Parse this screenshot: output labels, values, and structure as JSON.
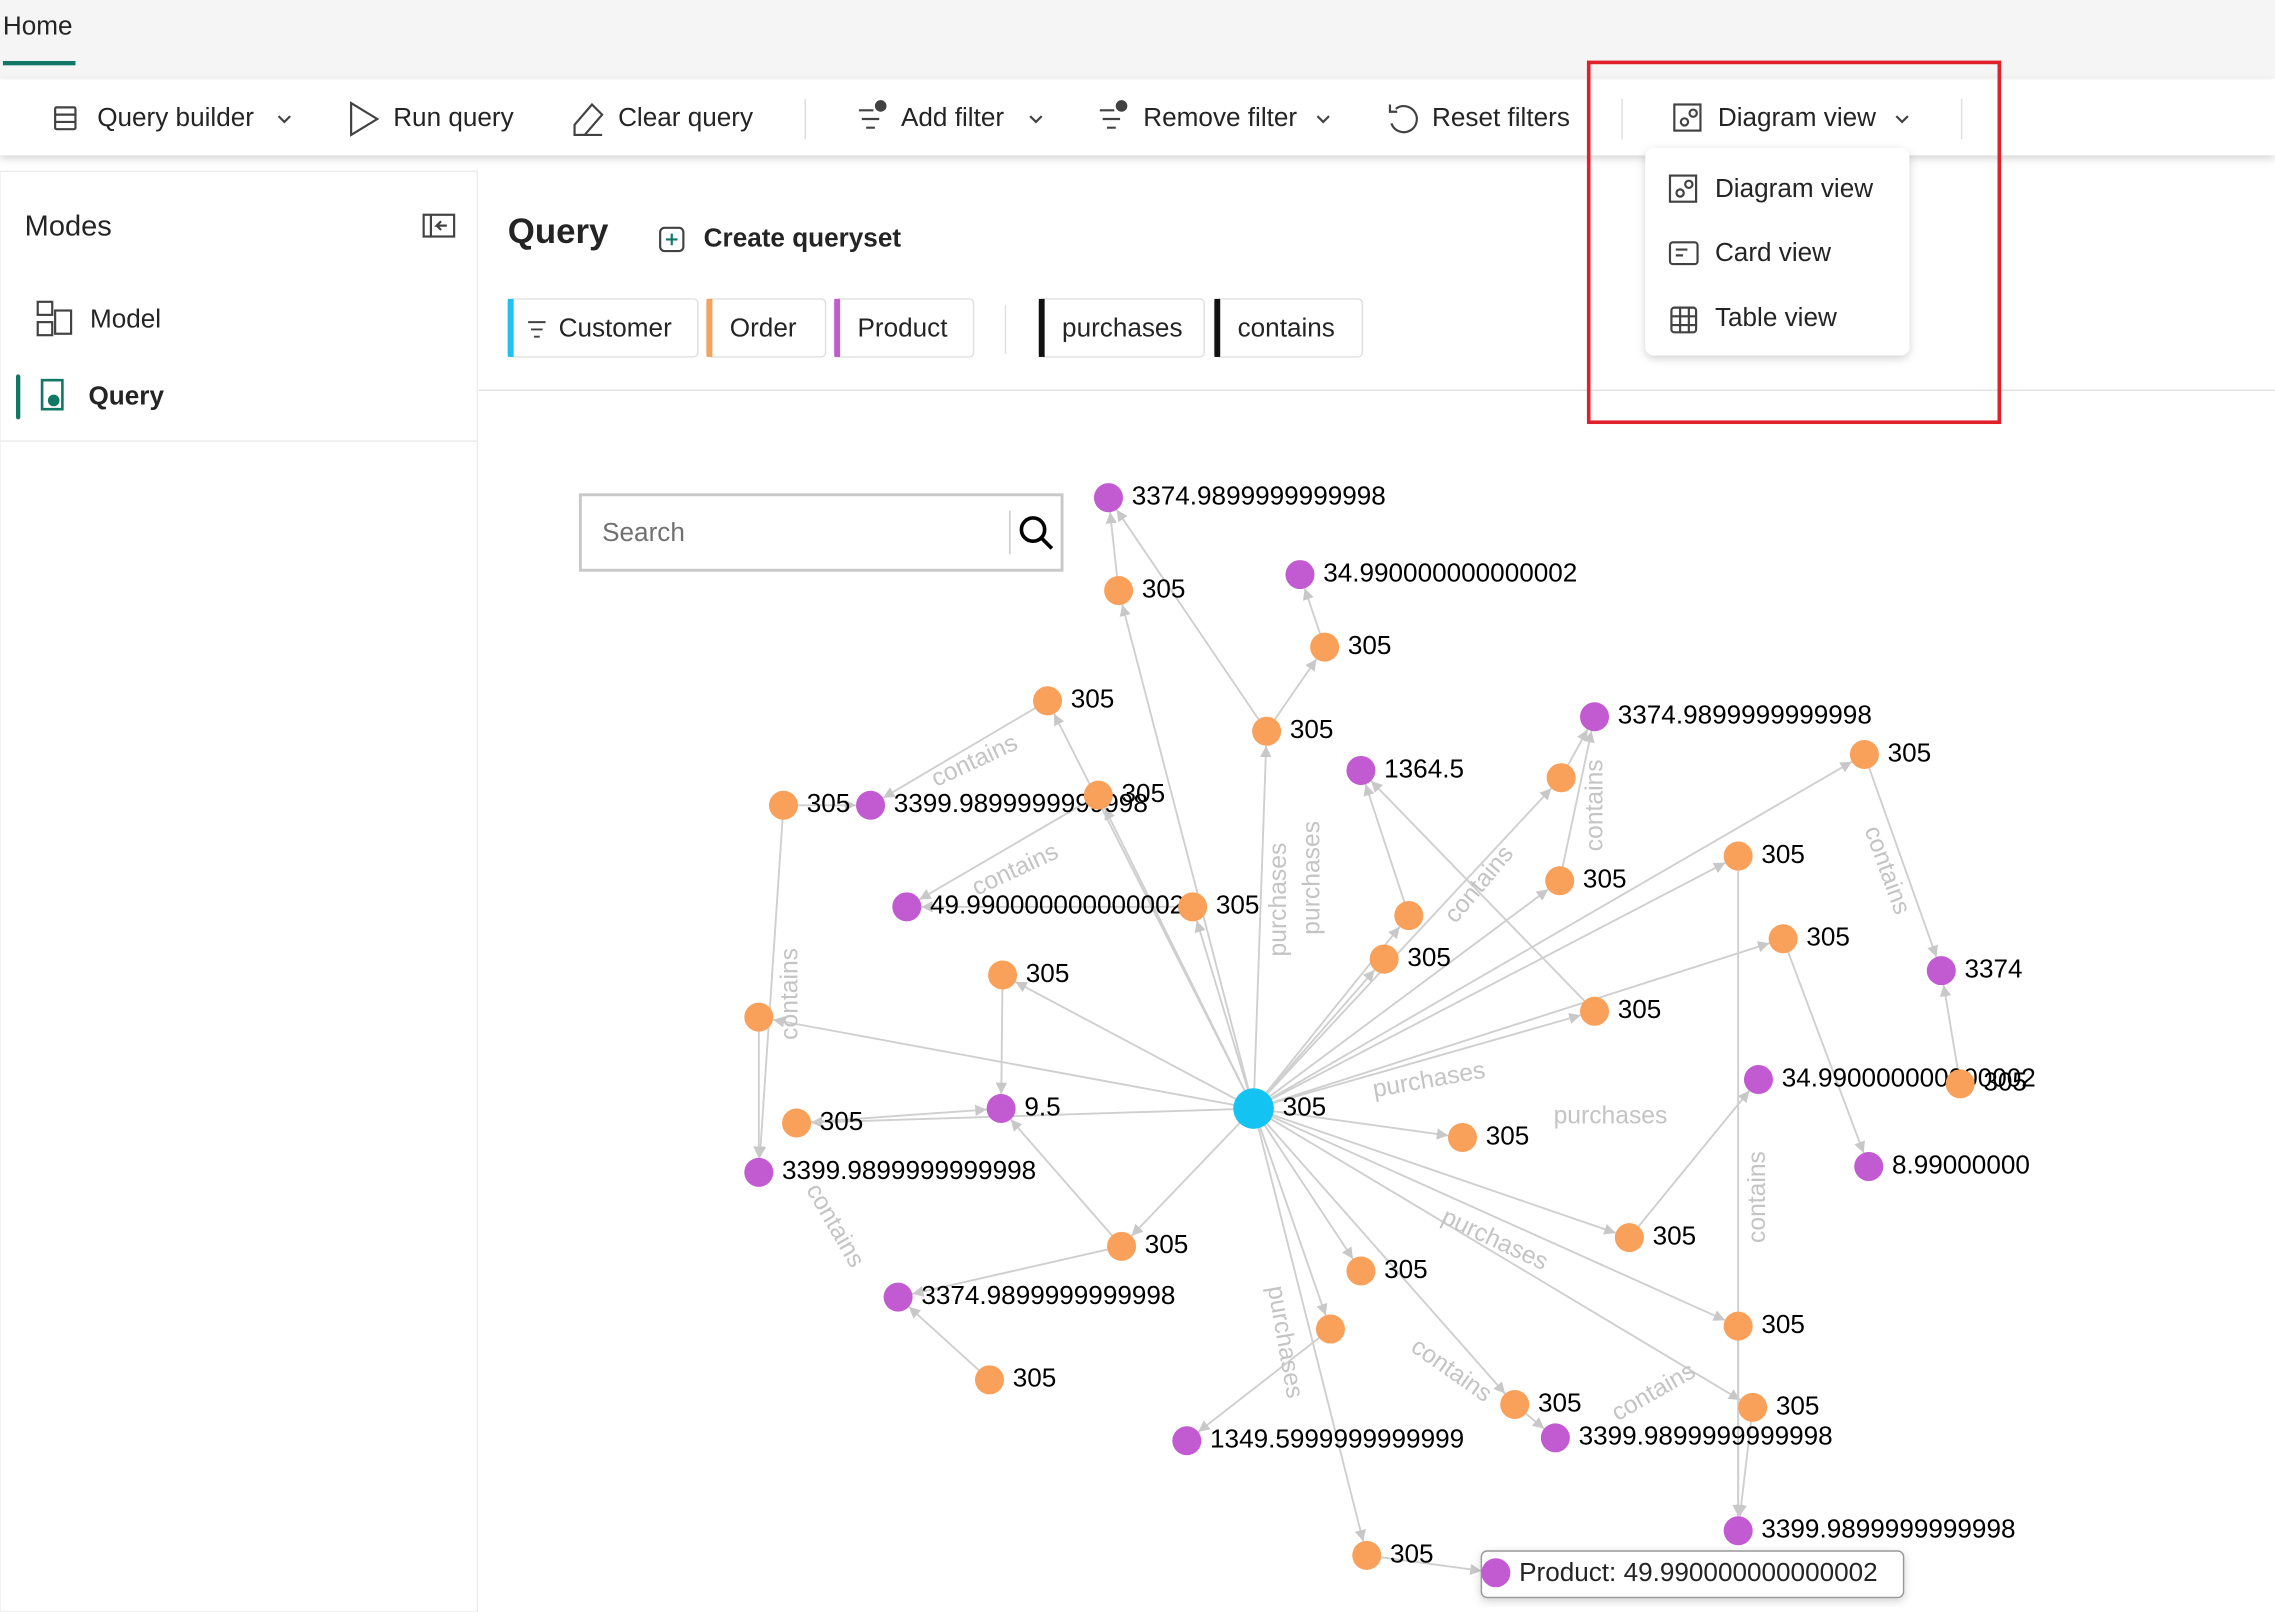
{
  "header": {
    "tab": "Home"
  },
  "toolbar": [
    "Query builder",
    "Run query",
    "Clear query",
    "Add filter",
    "Remove filter",
    "Reset filters",
    "Diagram view"
  ],
  "view_menu": [
    "Diagram view",
    "Card view",
    "Table view"
  ],
  "sidebar": {
    "title": "Modes",
    "items": [
      "Model",
      "Query"
    ]
  },
  "query": {
    "title": "Query",
    "action": "Create queryset",
    "node_filters": [
      "Customer",
      "Order",
      "Product"
    ],
    "edge_filters": [
      "purchases",
      "contains"
    ],
    "search_placeholder": "Search"
  },
  "graph": {
    "nodes": [
      {
        "label": "305"
      },
      {
        "label": "3374.9899999999998"
      },
      {
        "label": "305"
      },
      {
        "label": "34.990000000000002"
      },
      {
        "label": "305"
      },
      {
        "label": "305"
      },
      {
        "label": "305"
      },
      {
        "label": "3374.9899999999998"
      },
      {
        "label": "305"
      },
      {
        "label": "1364.5"
      },
      {
        "label": "305"
      },
      {
        "label": "3399.9899999999998"
      },
      {
        "label": "305"
      },
      {
        "label": null
      },
      {
        "label": "305"
      },
      {
        "label": "305"
      },
      {
        "label": "49.990000000000002"
      },
      {
        "label": "305"
      },
      {
        "label": null
      },
      {
        "label": "305"
      },
      {
        "label": "3374"
      },
      {
        "label": "305"
      },
      {
        "label": "305"
      },
      {
        "label": "305"
      },
      {
        "label": null
      },
      {
        "label": "34.990000000000002"
      },
      {
        "label": "305"
      },
      {
        "label": "9.5"
      },
      {
        "label": "305"
      },
      {
        "label": "305"
      },
      {
        "label": "3399.9899999999998"
      },
      {
        "label": "8.99000000"
      },
      {
        "label": "305"
      },
      {
        "label": "305"
      },
      {
        "label": "305"
      },
      {
        "label": "3374.9899999999998"
      },
      {
        "label": "305"
      },
      {
        "label": null
      },
      {
        "label": "305"
      },
      {
        "label": "305"
      },
      {
        "label": "305"
      },
      {
        "label": "1349.5999999999999"
      },
      {
        "label": "3399.9899999999998"
      },
      {
        "label": "3399.9899999999998"
      },
      {
        "label": "305"
      },
      {
        "label": null
      }
    ],
    "edge_labels": [
      "contains",
      "contains",
      "contains",
      "purchases",
      "purchases",
      "contains",
      "contains",
      "purchases",
      "purchases",
      "contains",
      "purchases",
      "contains",
      "purchases",
      "contains",
      "contains",
      "contains"
    ],
    "tooltip": "Product: 49.990000000000002"
  }
}
